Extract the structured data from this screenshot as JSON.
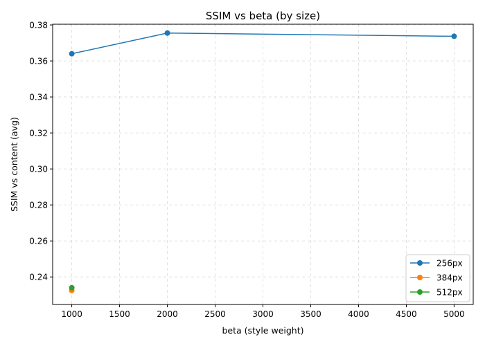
{
  "chart_data": {
    "type": "line",
    "title": "SSIM vs beta (by size)",
    "xlabel": "beta (style weight)",
    "ylabel": "SSIM vs content (avg)",
    "xlim": [
      800,
      5200
    ],
    "ylim": [
      0.2247,
      0.3804
    ],
    "xticks": [
      1000,
      1500,
      2000,
      2500,
      3000,
      3500,
      4000,
      4500,
      5000
    ],
    "yticks": [
      0.24,
      0.26,
      0.28,
      0.3,
      0.32,
      0.34,
      0.36,
      0.38
    ],
    "xtick_labels": [
      "1000",
      "1500",
      "2000",
      "2500",
      "3000",
      "3500",
      "4000",
      "4500",
      "5000"
    ],
    "ytick_labels": [
      "0.24",
      "0.26",
      "0.28",
      "0.30",
      "0.32",
      "0.34",
      "0.36",
      "0.38"
    ],
    "grid": true,
    "legend_position": "lower-right",
    "series": [
      {
        "name": "256px",
        "color": "#1f77b4",
        "x": [
          1000,
          2000,
          5000
        ],
        "y": [
          0.364,
          0.3755,
          0.3737
        ]
      },
      {
        "name": "384px",
        "color": "#ff7f0e",
        "x": [
          1000
        ],
        "y": [
          0.2325
        ]
      },
      {
        "name": "512px",
        "color": "#2ca02c",
        "x": [
          1000
        ],
        "y": [
          0.234
        ]
      }
    ]
  }
}
